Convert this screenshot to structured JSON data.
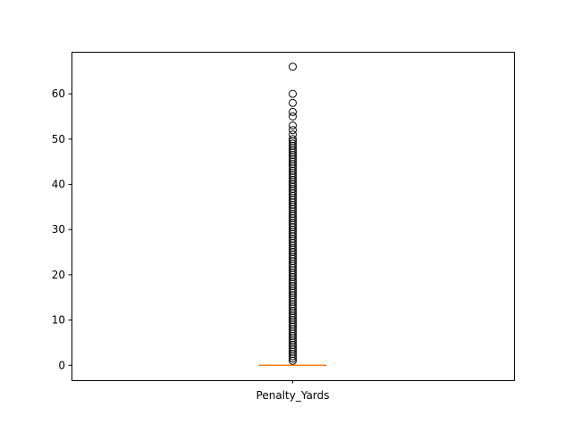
{
  "chart_data": {
    "type": "box",
    "title": "",
    "xlabel": "",
    "ylabel": "",
    "categories": [
      "Penalty_Yards"
    ],
    "ylim": [
      -3.3,
      69.3
    ],
    "yticks": [
      0,
      10,
      20,
      30,
      40,
      50,
      60
    ],
    "grid": false,
    "box": {
      "q1": 0,
      "median": 0,
      "q3": 0,
      "whisker_low": 0,
      "whisker_high": 0
    },
    "outliers": [
      1,
      1.5,
      2,
      2.5,
      3,
      3.5,
      4,
      4.5,
      5,
      5.5,
      6,
      6.5,
      7,
      7.5,
      8,
      8.5,
      9,
      9.5,
      10,
      10.5,
      11,
      11.5,
      12,
      12.5,
      13,
      13.5,
      14,
      14.5,
      15,
      15.5,
      16,
      16.5,
      17,
      17.5,
      18,
      18.5,
      19,
      19.5,
      20,
      20.5,
      21,
      21.5,
      22,
      22.5,
      23,
      23.5,
      24,
      24.5,
      25,
      25.5,
      26,
      26.5,
      27,
      27.5,
      28,
      28.5,
      29,
      29.5,
      30,
      30.5,
      31,
      31.5,
      32,
      32.5,
      33,
      33.5,
      34,
      34.5,
      35,
      35.5,
      36,
      36.5,
      37,
      37.5,
      38,
      38.5,
      39,
      39.5,
      40,
      40.5,
      41,
      41.5,
      42,
      42.5,
      43,
      43.5,
      44,
      44.5,
      45,
      45.5,
      46,
      46.5,
      47,
      47.5,
      48,
      48.5,
      49,
      49.5,
      50,
      51,
      52,
      53,
      55,
      56,
      58,
      60,
      66
    ],
    "colors": {
      "median": "#ff7f0e",
      "box": "#000000",
      "outlier_edge": "#000000"
    }
  }
}
